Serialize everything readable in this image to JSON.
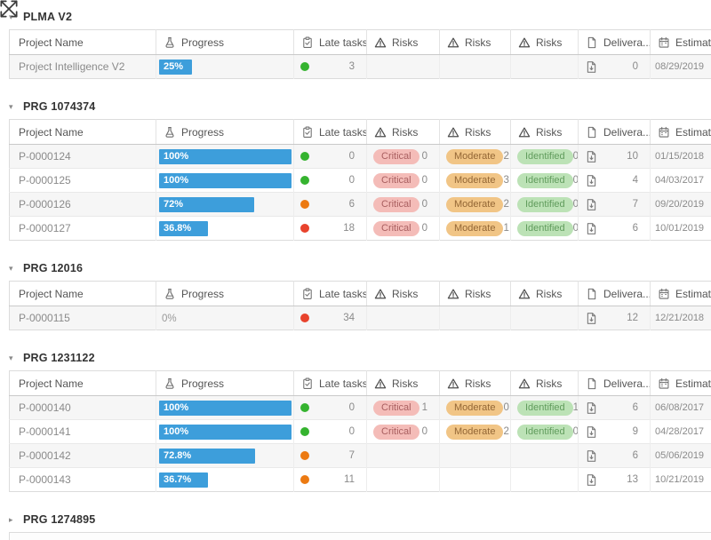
{
  "colors": {
    "progress_bar": "#3d9edb",
    "dot_green": "#35b32f",
    "dot_orange": "#ec7a12",
    "dot_red": "#e8432d",
    "badge_critical_bg": "#f4bcb8",
    "badge_moderate_bg": "#f1c586",
    "badge_identified_bg": "#bce2b6"
  },
  "icons": {
    "move": "move-icon",
    "progress": "flask-icon",
    "late": "clipboard-check-icon",
    "risks": "warning-triangle-icon",
    "deliverables": "file-icon",
    "estimated": "calendar-icon",
    "deliverable_cell": "file-download-icon",
    "expanded": "caret-down-icon",
    "collapsed": "caret-right-icon"
  },
  "columns": [
    {
      "key": "name",
      "label": "Project Name",
      "icon": null
    },
    {
      "key": "progress",
      "label": "Progress",
      "icon": "flask"
    },
    {
      "key": "late",
      "label": "Late tasks",
      "icon": "clipboard"
    },
    {
      "key": "risk1",
      "label": "Risks",
      "icon": "warning"
    },
    {
      "key": "risk2",
      "label": "Risks",
      "icon": "warning"
    },
    {
      "key": "risk3",
      "label": "Risks",
      "icon": "warning"
    },
    {
      "key": "deliv",
      "label": "Delivera...",
      "icon": "file"
    },
    {
      "key": "est",
      "label": "Estimated",
      "icon": "calendar"
    }
  ],
  "groups": [
    {
      "title": "PLMA V2",
      "collapsed": false,
      "rows": [
        {
          "name": "Project Intelligence V2",
          "progress_label": "25%",
          "progress_pct": 25,
          "late_status": "green",
          "late_count": "3",
          "risks": [
            null,
            null,
            null
          ],
          "deliverables": "0",
          "estimated": "08/29/2019"
        }
      ]
    },
    {
      "title": "PRG 1074374",
      "collapsed": false,
      "rows": [
        {
          "name": "P-0000124",
          "progress_label": "100%",
          "progress_pct": 100,
          "late_status": "green",
          "late_count": "0",
          "risks": [
            {
              "label": "Critical",
              "count": "0"
            },
            {
              "label": "Moderate",
              "count": "2"
            },
            {
              "label": "Identified",
              "count": "0"
            }
          ],
          "deliverables": "10",
          "estimated": "01/15/2018"
        },
        {
          "name": "P-0000125",
          "progress_label": "100%",
          "progress_pct": 100,
          "late_status": "green",
          "late_count": "0",
          "risks": [
            {
              "label": "Critical",
              "count": "0"
            },
            {
              "label": "Moderate",
              "count": "3"
            },
            {
              "label": "Identified",
              "count": "0"
            }
          ],
          "deliverables": "4",
          "estimated": "04/03/2017"
        },
        {
          "name": "P-0000126",
          "progress_label": "72%",
          "progress_pct": 72,
          "late_status": "orange",
          "late_count": "6",
          "risks": [
            {
              "label": "Critical",
              "count": "0"
            },
            {
              "label": "Moderate",
              "count": "2"
            },
            {
              "label": "Identified",
              "count": "0"
            }
          ],
          "deliverables": "7",
          "estimated": "09/20/2019"
        },
        {
          "name": "P-0000127",
          "progress_label": "36.8%",
          "progress_pct": 36.8,
          "late_status": "red",
          "late_count": "18",
          "risks": [
            {
              "label": "Critical",
              "count": "0"
            },
            {
              "label": "Moderate",
              "count": "1"
            },
            {
              "label": "Identified",
              "count": "0"
            }
          ],
          "deliverables": "6",
          "estimated": "10/01/2019"
        }
      ]
    },
    {
      "title": "PRG 12016",
      "collapsed": false,
      "rows": [
        {
          "name": "P-0000115",
          "progress_label": "0%",
          "progress_pct": 0,
          "late_status": "red",
          "late_count": "34",
          "risks": [
            null,
            null,
            null
          ],
          "deliverables": "12",
          "estimated": "12/21/2018"
        }
      ]
    },
    {
      "title": "PRG 1231122",
      "collapsed": false,
      "rows": [
        {
          "name": "P-0000140",
          "progress_label": "100%",
          "progress_pct": 100,
          "late_status": "green",
          "late_count": "0",
          "risks": [
            {
              "label": "Critical",
              "count": "1"
            },
            {
              "label": "Moderate",
              "count": "0"
            },
            {
              "label": "Identified",
              "count": "1"
            }
          ],
          "deliverables": "6",
          "estimated": "06/08/2017"
        },
        {
          "name": "P-0000141",
          "progress_label": "100%",
          "progress_pct": 100,
          "late_status": "green",
          "late_count": "0",
          "risks": [
            {
              "label": "Critical",
              "count": "0"
            },
            {
              "label": "Moderate",
              "count": "2"
            },
            {
              "label": "Identified",
              "count": "0"
            }
          ],
          "deliverables": "9",
          "estimated": "04/28/2017"
        },
        {
          "name": "P-0000142",
          "progress_label": "72.8%",
          "progress_pct": 72.8,
          "late_status": "orange",
          "late_count": "7",
          "risks": [
            null,
            null,
            null
          ],
          "deliverables": "6",
          "estimated": "05/06/2019"
        },
        {
          "name": "P-0000143",
          "progress_label": "36.7%",
          "progress_pct": 36.7,
          "late_status": "orange",
          "late_count": "11",
          "risks": [
            null,
            null,
            null
          ],
          "deliverables": "13",
          "estimated": "10/21/2019"
        }
      ]
    },
    {
      "title": "PRG 1274895",
      "collapsed": true,
      "rows": [],
      "partial_next_table": true
    }
  ]
}
